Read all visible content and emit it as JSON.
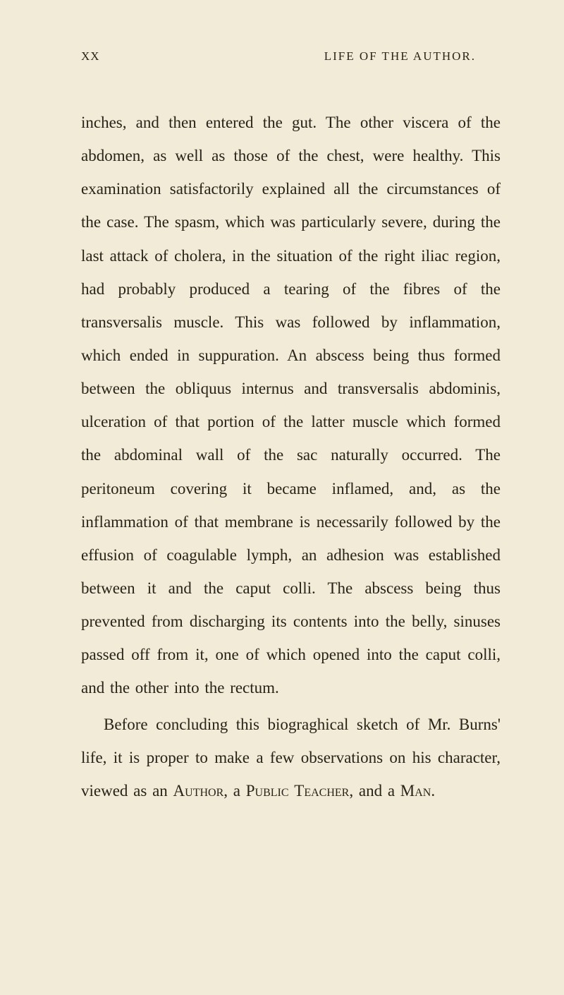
{
  "page": {
    "number": "XX",
    "header_title": "LIFE OF THE AUTHOR.",
    "paragraphs": [
      "inches, and then entered the gut. The other vis­cera of the abdomen, as well as those of the chest, were healthy. This examination satisfactorily explained all the circumstances of the case. The spasm, which was particularly severe, during the last attack of cholera, in the situation of the right iliac region, had probably produced a tearing of the fibres of the transversalis muscle. This was followed by inflammation, which ended in sup­puration. An abscess being thus formed between the obliquus internus and transversalis abdominis, ulceration of that portion of the latter muscle which formed the abdominal wall of the sac na­turally occurred. The peritoneum covering it became inflamed, and, as the inflammation of that membrane is necessarily followed by the effusion of coagulable lymph, an adhesion was established between it and the caput colli. The abscess be­ing thus prevented from discharging its contents into the belly, sinuses passed off from it, one of which opened into the caput colli, and the other into the rectum."
    ],
    "para2_part1": "Before concluding this biograghical sketch of Mr. Burns' life, it is proper to make a few obser­vations on his character, viewed as an ",
    "para2_author": "Author",
    "para2_part2": ", a ",
    "para2_public": "Public",
    "para2_part3": " ",
    "para2_teacher": "Teacher",
    "para2_part4": ", and a ",
    "para2_man": "Man",
    "para2_part5": "."
  },
  "colors": {
    "background": "#f2ebd8",
    "text": "#282318"
  },
  "typography": {
    "body_fontsize": 23,
    "header_fontsize": 17,
    "line_height": 2.05
  }
}
